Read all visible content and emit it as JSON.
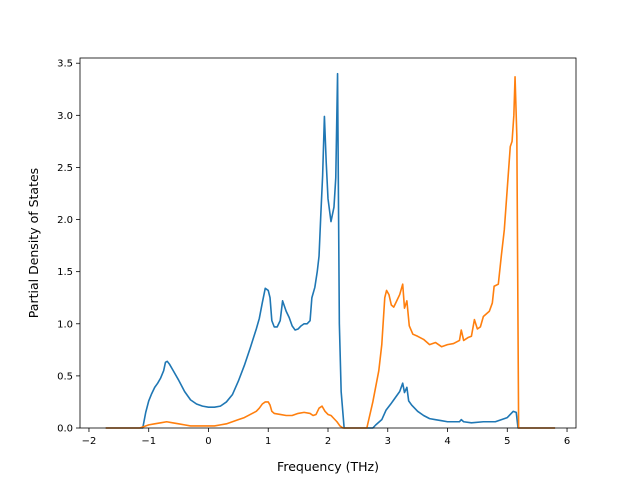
{
  "chart_data": {
    "type": "line",
    "title": "",
    "xlabel": "Frequency (THz)",
    "ylabel": "Partial Density of States",
    "xlim": [
      -2.15,
      6.15
    ],
    "ylim": [
      0.0,
      3.55
    ],
    "xticks": [
      -2,
      -1,
      0,
      1,
      2,
      3,
      4,
      5,
      6
    ],
    "xtick_labels": [
      "−2",
      "−1",
      "0",
      "1",
      "2",
      "3",
      "4",
      "5",
      "6"
    ],
    "yticks": [
      0.0,
      0.5,
      1.0,
      1.5,
      2.0,
      2.5,
      3.0,
      3.5
    ],
    "ytick_labels": [
      "0.0",
      "0.5",
      "1.0",
      "1.5",
      "2.0",
      "2.5",
      "3.0",
      "3.5"
    ],
    "grid": false,
    "legend": "none",
    "series": [
      {
        "color": "#1f77b4",
        "points": [
          [
            -1.72,
            0.0
          ],
          [
            -1.1,
            0.0
          ],
          [
            -1.05,
            0.15
          ],
          [
            -1.0,
            0.26
          ],
          [
            -0.95,
            0.33
          ],
          [
            -0.9,
            0.39
          ],
          [
            -0.85,
            0.43
          ],
          [
            -0.8,
            0.48
          ],
          [
            -0.75,
            0.55
          ],
          [
            -0.72,
            0.63
          ],
          [
            -0.69,
            0.64
          ],
          [
            -0.65,
            0.61
          ],
          [
            -0.6,
            0.56
          ],
          [
            -0.5,
            0.46
          ],
          [
            -0.4,
            0.35
          ],
          [
            -0.3,
            0.27
          ],
          [
            -0.2,
            0.23
          ],
          [
            -0.1,
            0.21
          ],
          [
            0.0,
            0.2
          ],
          [
            0.1,
            0.2
          ],
          [
            0.2,
            0.21
          ],
          [
            0.3,
            0.25
          ],
          [
            0.4,
            0.32
          ],
          [
            0.5,
            0.45
          ],
          [
            0.6,
            0.6
          ],
          [
            0.7,
            0.77
          ],
          [
            0.8,
            0.95
          ],
          [
            0.85,
            1.05
          ],
          [
            0.9,
            1.2
          ],
          [
            0.95,
            1.34
          ],
          [
            1.0,
            1.32
          ],
          [
            1.03,
            1.25
          ],
          [
            1.06,
            1.03
          ],
          [
            1.1,
            0.97
          ],
          [
            1.15,
            0.97
          ],
          [
            1.2,
            1.03
          ],
          [
            1.24,
            1.22
          ],
          [
            1.3,
            1.12
          ],
          [
            1.35,
            1.06
          ],
          [
            1.4,
            0.98
          ],
          [
            1.45,
            0.94
          ],
          [
            1.5,
            0.95
          ],
          [
            1.55,
            0.98
          ],
          [
            1.6,
            1.0
          ],
          [
            1.65,
            1.0
          ],
          [
            1.7,
            1.03
          ],
          [
            1.73,
            1.25
          ],
          [
            1.78,
            1.35
          ],
          [
            1.82,
            1.5
          ],
          [
            1.85,
            1.65
          ],
          [
            1.88,
            2.05
          ],
          [
            1.91,
            2.42
          ],
          [
            1.94,
            2.99
          ],
          [
            1.97,
            2.55
          ],
          [
            2.0,
            2.2
          ],
          [
            2.05,
            1.98
          ],
          [
            2.1,
            2.12
          ],
          [
            2.13,
            2.4
          ],
          [
            2.16,
            3.4
          ],
          [
            2.19,
            1.0
          ],
          [
            2.22,
            0.35
          ],
          [
            2.27,
            0.0
          ],
          [
            2.35,
            0.0
          ],
          [
            2.75,
            0.0
          ],
          [
            2.8,
            0.03
          ],
          [
            2.9,
            0.08
          ],
          [
            2.97,
            0.17
          ],
          [
            3.05,
            0.23
          ],
          [
            3.1,
            0.27
          ],
          [
            3.2,
            0.35
          ],
          [
            3.25,
            0.43
          ],
          [
            3.28,
            0.34
          ],
          [
            3.32,
            0.39
          ],
          [
            3.35,
            0.26
          ],
          [
            3.4,
            0.22
          ],
          [
            3.5,
            0.16
          ],
          [
            3.6,
            0.12
          ],
          [
            3.7,
            0.09
          ],
          [
            3.8,
            0.08
          ],
          [
            3.9,
            0.07
          ],
          [
            4.0,
            0.06
          ],
          [
            4.2,
            0.06
          ],
          [
            4.23,
            0.08
          ],
          [
            4.27,
            0.06
          ],
          [
            4.4,
            0.05
          ],
          [
            4.6,
            0.06
          ],
          [
            4.8,
            0.06
          ],
          [
            5.0,
            0.1
          ],
          [
            5.05,
            0.13
          ],
          [
            5.1,
            0.16
          ],
          [
            5.15,
            0.15
          ],
          [
            5.18,
            0.0
          ],
          [
            5.8,
            0.0
          ]
        ]
      },
      {
        "color": "#ff7f0e",
        "points": [
          [
            -1.72,
            0.0
          ],
          [
            -1.15,
            0.0
          ],
          [
            -1.1,
            0.01
          ],
          [
            -1.0,
            0.03
          ],
          [
            -0.9,
            0.04
          ],
          [
            -0.8,
            0.05
          ],
          [
            -0.7,
            0.06
          ],
          [
            -0.6,
            0.05
          ],
          [
            -0.5,
            0.04
          ],
          [
            -0.4,
            0.03
          ],
          [
            -0.3,
            0.02
          ],
          [
            -0.2,
            0.02
          ],
          [
            -0.1,
            0.02
          ],
          [
            0.0,
            0.02
          ],
          [
            0.1,
            0.02
          ],
          [
            0.2,
            0.03
          ],
          [
            0.3,
            0.04
          ],
          [
            0.4,
            0.06
          ],
          [
            0.5,
            0.08
          ],
          [
            0.6,
            0.1
          ],
          [
            0.7,
            0.13
          ],
          [
            0.8,
            0.16
          ],
          [
            0.85,
            0.19
          ],
          [
            0.9,
            0.23
          ],
          [
            0.95,
            0.25
          ],
          [
            1.0,
            0.25
          ],
          [
            1.03,
            0.22
          ],
          [
            1.06,
            0.16
          ],
          [
            1.1,
            0.14
          ],
          [
            1.2,
            0.13
          ],
          [
            1.3,
            0.12
          ],
          [
            1.4,
            0.12
          ],
          [
            1.5,
            0.14
          ],
          [
            1.6,
            0.15
          ],
          [
            1.7,
            0.14
          ],
          [
            1.75,
            0.12
          ],
          [
            1.8,
            0.13
          ],
          [
            1.85,
            0.19
          ],
          [
            1.9,
            0.21
          ],
          [
            1.95,
            0.16
          ],
          [
            2.0,
            0.13
          ],
          [
            2.05,
            0.12
          ],
          [
            2.1,
            0.09
          ],
          [
            2.15,
            0.06
          ],
          [
            2.2,
            0.02
          ],
          [
            2.25,
            0.0
          ],
          [
            2.65,
            0.0
          ],
          [
            2.75,
            0.25
          ],
          [
            2.8,
            0.4
          ],
          [
            2.85,
            0.55
          ],
          [
            2.9,
            0.8
          ],
          [
            2.95,
            1.25
          ],
          [
            2.98,
            1.32
          ],
          [
            3.02,
            1.28
          ],
          [
            3.06,
            1.18
          ],
          [
            3.1,
            1.16
          ],
          [
            3.15,
            1.22
          ],
          [
            3.2,
            1.28
          ],
          [
            3.25,
            1.38
          ],
          [
            3.28,
            1.15
          ],
          [
            3.32,
            1.22
          ],
          [
            3.36,
            0.98
          ],
          [
            3.42,
            0.9
          ],
          [
            3.5,
            0.88
          ],
          [
            3.6,
            0.85
          ],
          [
            3.7,
            0.8
          ],
          [
            3.8,
            0.82
          ],
          [
            3.9,
            0.78
          ],
          [
            4.0,
            0.8
          ],
          [
            4.1,
            0.81
          ],
          [
            4.2,
            0.84
          ],
          [
            4.23,
            0.94
          ],
          [
            4.27,
            0.84
          ],
          [
            4.35,
            0.87
          ],
          [
            4.4,
            0.88
          ],
          [
            4.45,
            1.04
          ],
          [
            4.5,
            0.95
          ],
          [
            4.55,
            0.97
          ],
          [
            4.6,
            1.07
          ],
          [
            4.7,
            1.12
          ],
          [
            4.75,
            1.2
          ],
          [
            4.78,
            1.36
          ],
          [
            4.85,
            1.38
          ],
          [
            4.9,
            1.65
          ],
          [
            4.95,
            1.9
          ],
          [
            5.0,
            2.3
          ],
          [
            5.05,
            2.7
          ],
          [
            5.08,
            2.75
          ],
          [
            5.11,
            3.0
          ],
          [
            5.13,
            3.37
          ],
          [
            5.16,
            2.8
          ],
          [
            5.19,
            0.0
          ],
          [
            5.8,
            0.0
          ]
        ]
      }
    ]
  }
}
